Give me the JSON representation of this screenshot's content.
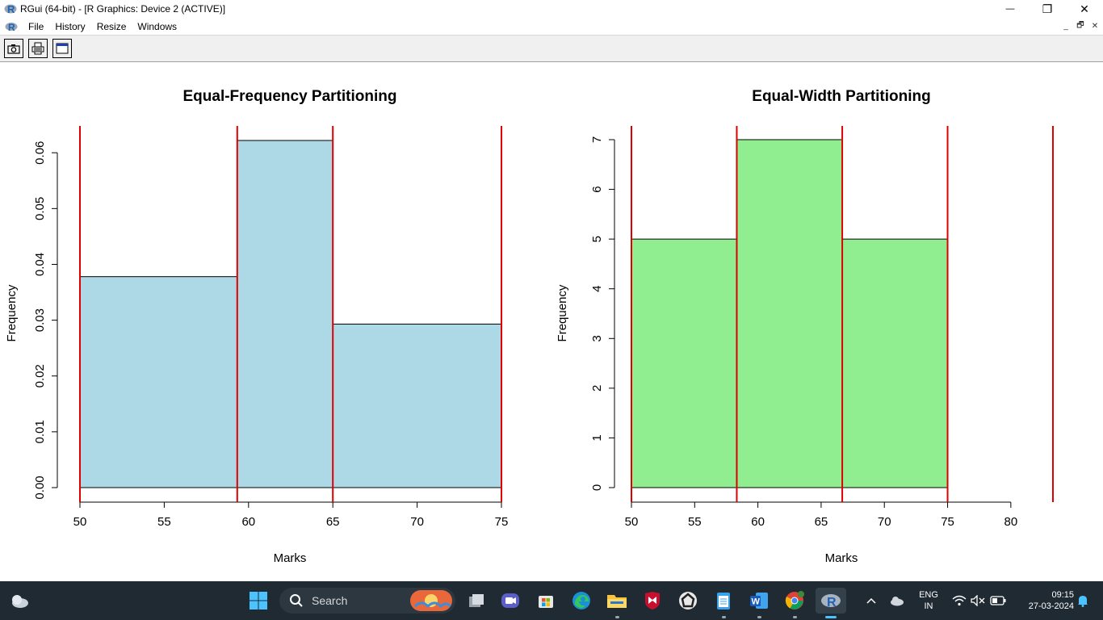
{
  "window": {
    "title": "RGui (64-bit) - [R Graphics: Device 2 (ACTIVE)]",
    "minimize": "—",
    "maximize": "❐",
    "close": "✕"
  },
  "menu": {
    "items": [
      "File",
      "History",
      "Resize",
      "Windows"
    ],
    "mdi_minimize": "_",
    "mdi_restore": "🗗",
    "mdi_close": "✕"
  },
  "toolbar": {
    "buttons": [
      "copy-to-clipboard",
      "print",
      "window"
    ]
  },
  "chart_data": [
    {
      "type": "bar",
      "title": "Equal-Frequency Partitioning",
      "xlabel": "Marks",
      "ylabel": "Frequency",
      "fill": "#add8e6",
      "breaks": [
        50,
        59.33,
        65,
        75
      ],
      "densities": [
        0.0378,
        0.0622,
        0.0293
      ],
      "xlim": [
        50,
        75
      ],
      "ylim": [
        0,
        0.0622
      ],
      "xticks": [
        50,
        55,
        60,
        65,
        70,
        75
      ],
      "xtick_labels": [
        "50",
        "55",
        "60",
        "65",
        "70",
        "75"
      ],
      "yticks": [
        0,
        0.01,
        0.02,
        0.03,
        0.04,
        0.05,
        0.06
      ],
      "ytick_labels": [
        "0.00",
        "0.01",
        "0.02",
        "0.03",
        "0.04",
        "0.05",
        "0.06"
      ],
      "vlines": [
        50,
        59.33,
        65,
        75
      ],
      "vline_color": "#e00000"
    },
    {
      "type": "bar",
      "title": "Equal-Width Partitioning",
      "xlabel": "Marks",
      "ylabel": "Frequency",
      "fill": "#90ee90",
      "breaks": [
        50,
        58.33,
        66.67,
        75,
        83.33
      ],
      "counts": [
        5,
        7,
        5,
        0
      ],
      "xlim": [
        50,
        83.33
      ],
      "ylim": [
        0,
        7
      ],
      "xticks": [
        50,
        55,
        60,
        65,
        70,
        75,
        80
      ],
      "xtick_labels": [
        "50",
        "55",
        "60",
        "65",
        "70",
        "75",
        "80"
      ],
      "yticks": [
        0,
        1,
        2,
        3,
        4,
        5,
        6,
        7
      ],
      "ytick_labels": [
        "0",
        "1",
        "2",
        "3",
        "4",
        "5",
        "6",
        "7"
      ],
      "vlines": [
        50,
        58.33,
        66.67,
        75,
        83.33
      ],
      "vline_color": "#e00000"
    }
  ],
  "taskbar": {
    "search_label": "Search",
    "language": "ENG",
    "region": "IN",
    "time": "09:15",
    "date": "27-03-2024",
    "apps": [
      "widgets-icon",
      "start-icon",
      "task-view-icon",
      "meet-icon",
      "store-icon",
      "edge-icon",
      "file-explorer-icon",
      "mcafee-icon",
      "app-icon",
      "notepad-icon",
      "word-icon",
      "chrome-icon",
      "r-icon"
    ]
  }
}
